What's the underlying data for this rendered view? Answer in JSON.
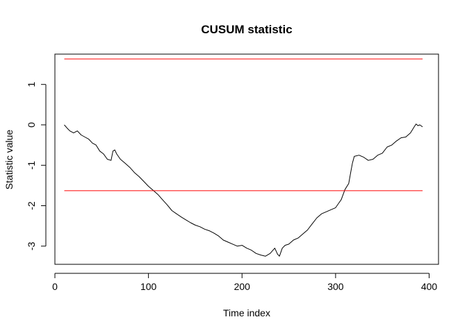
{
  "chart_data": {
    "type": "line",
    "title": "CUSUM statistic",
    "xlabel": "Time index",
    "ylabel": "Statistic value",
    "xlim": [
      0,
      410
    ],
    "ylim": [
      -3.45,
      1.75
    ],
    "x_ticks": [
      0,
      100,
      200,
      300,
      400
    ],
    "y_ticks": [
      -3,
      -2,
      -1,
      0,
      1
    ],
    "grid": false,
    "series": [
      {
        "kind": "statistic",
        "color": "#000000",
        "x": [
          10,
          13,
          16,
          20,
          24,
          28,
          32,
          36,
          40,
          44,
          48,
          52,
          56,
          60,
          62,
          64,
          66,
          70,
          75,
          80,
          85,
          90,
          95,
          100,
          105,
          110,
          115,
          120,
          125,
          130,
          135,
          140,
          145,
          150,
          155,
          160,
          165,
          170,
          175,
          180,
          185,
          190,
          195,
          200,
          205,
          210,
          215,
          220,
          225,
          230,
          235,
          238,
          240,
          243,
          246,
          250,
          255,
          260,
          265,
          270,
          275,
          280,
          285,
          290,
          295,
          300,
          303,
          306,
          310,
          314,
          316,
          318,
          320,
          325,
          330,
          335,
          340,
          345,
          350,
          355,
          360,
          365,
          370,
          375,
          380,
          384,
          386,
          388,
          390,
          393
        ],
        "y": [
          0.0,
          -0.08,
          -0.15,
          -0.2,
          -0.15,
          -0.25,
          -0.3,
          -0.35,
          -0.45,
          -0.5,
          -0.65,
          -0.72,
          -0.85,
          -0.88,
          -0.65,
          -0.62,
          -0.72,
          -0.85,
          -0.95,
          -1.05,
          -1.18,
          -1.28,
          -1.4,
          -1.52,
          -1.62,
          -1.72,
          -1.85,
          -1.98,
          -2.12,
          -2.2,
          -2.28,
          -2.35,
          -2.42,
          -2.48,
          -2.52,
          -2.58,
          -2.62,
          -2.68,
          -2.75,
          -2.85,
          -2.9,
          -2.95,
          -3.0,
          -2.98,
          -3.05,
          -3.1,
          -3.18,
          -3.22,
          -3.25,
          -3.18,
          -3.05,
          -3.2,
          -3.25,
          -3.05,
          -2.98,
          -2.95,
          -2.85,
          -2.8,
          -2.7,
          -2.6,
          -2.45,
          -2.3,
          -2.2,
          -2.15,
          -2.1,
          -2.05,
          -1.95,
          -1.85,
          -1.6,
          -1.45,
          -1.2,
          -0.95,
          -0.78,
          -0.75,
          -0.8,
          -0.88,
          -0.85,
          -0.75,
          -0.7,
          -0.55,
          -0.5,
          -0.4,
          -0.32,
          -0.3,
          -0.2,
          -0.05,
          0.02,
          -0.02,
          0.0,
          -0.05
        ]
      },
      {
        "kind": "upper-threshold",
        "color": "#ff0000",
        "x": [
          10,
          393
        ],
        "y": [
          1.63,
          1.63
        ]
      },
      {
        "kind": "lower-threshold",
        "color": "#ff0000",
        "x": [
          10,
          393
        ],
        "y": [
          -1.63,
          -1.63
        ]
      }
    ]
  }
}
